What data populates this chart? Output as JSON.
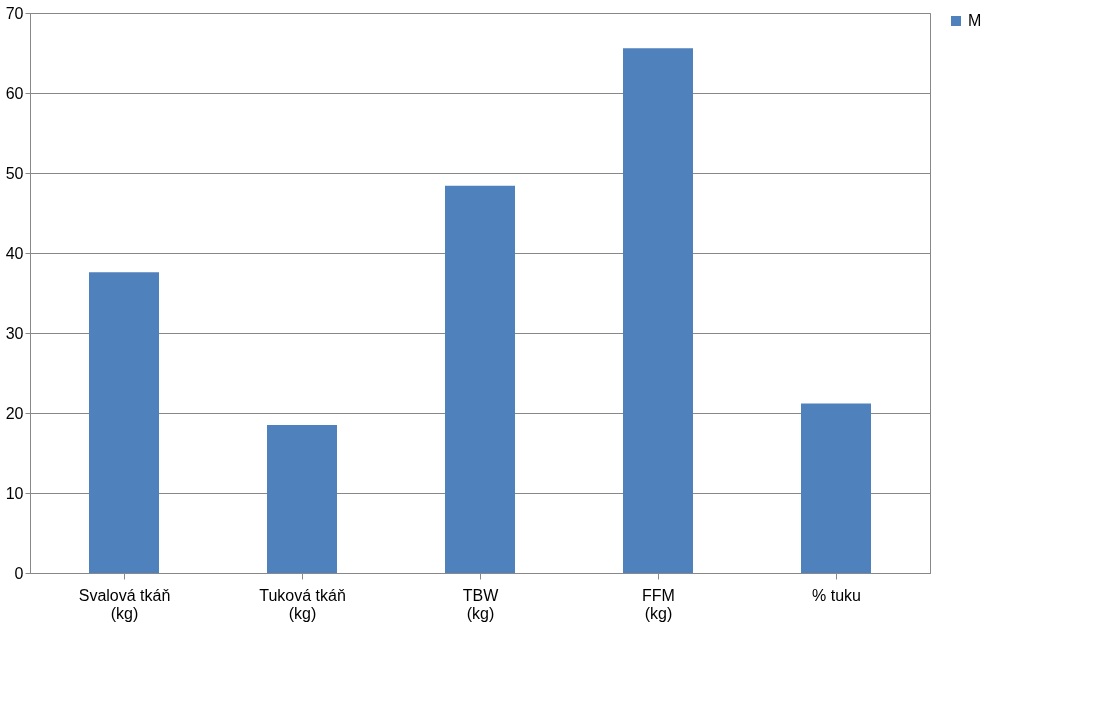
{
  "chart_data": {
    "type": "bar",
    "categories": [
      "Svalová tkáň (kg)",
      "Tuková tkáň (kg)",
      "TBW (kg)",
      "FFM (kg)",
      "% tuku"
    ],
    "series": [
      {
        "name": "M",
        "color": "#4f81bd",
        "values": [
          37.6,
          18.5,
          48.4,
          65.6,
          21.2
        ]
      }
    ],
    "ylim": [
      0,
      70
    ],
    "yticks": [
      0,
      10,
      20,
      30,
      40,
      50,
      60,
      70
    ],
    "grid": "y",
    "legend": "right"
  }
}
